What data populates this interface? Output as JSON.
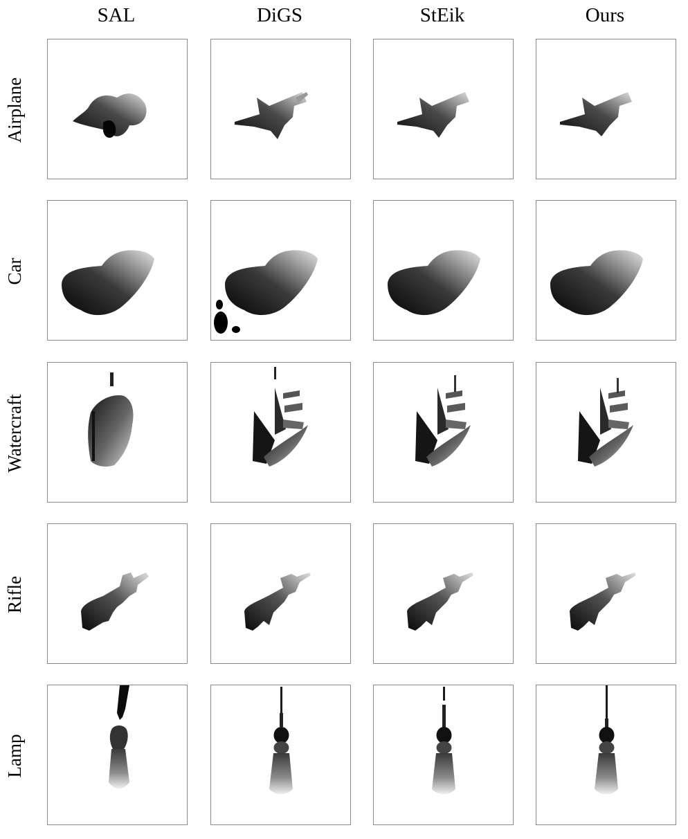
{
  "columns": [
    {
      "key": "sal",
      "label": "SAL"
    },
    {
      "key": "digs",
      "label": "DiGS"
    },
    {
      "key": "steik",
      "label": "StEik"
    },
    {
      "key": "ours",
      "label": "Ours"
    }
  ],
  "rows": [
    {
      "key": "airplane",
      "label": "Airplane"
    },
    {
      "key": "car",
      "label": "Car"
    },
    {
      "key": "watercraft",
      "label": "Watercraft"
    },
    {
      "key": "rifle",
      "label": "Rifle"
    },
    {
      "key": "lamp",
      "label": "Lamp"
    }
  ]
}
